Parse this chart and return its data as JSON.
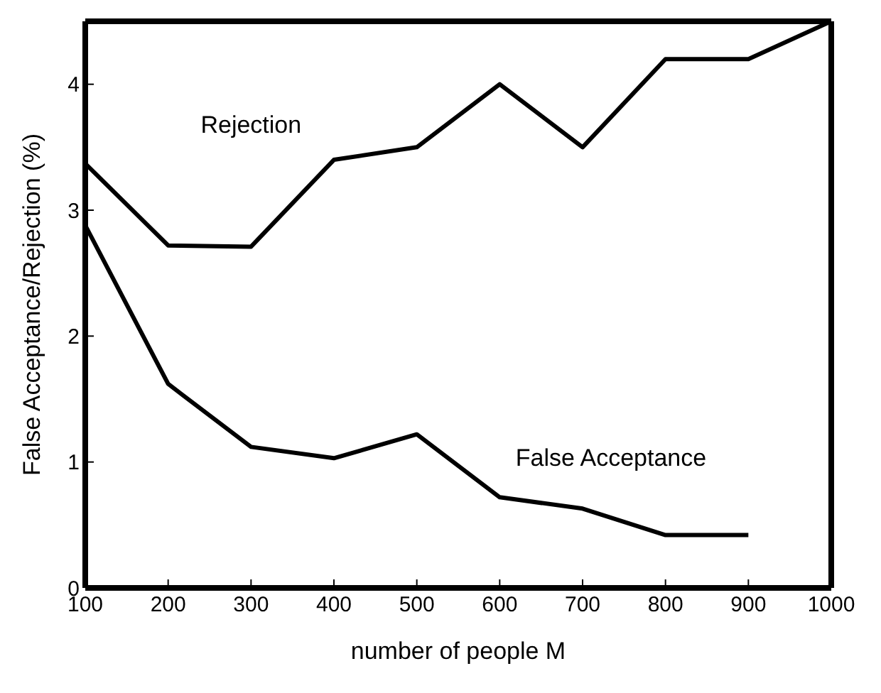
{
  "chart_data": {
    "type": "line",
    "xlabel": "number of people  M",
    "ylabel": "False Acceptance/Rejection  (%)",
    "x": [
      100,
      200,
      300,
      400,
      500,
      600,
      700,
      800,
      900,
      1000
    ],
    "series": [
      {
        "name": "Rejection",
        "color": "#000000",
        "values": [
          3.37,
          2.72,
          2.71,
          3.4,
          3.5,
          4.0,
          3.5,
          4.2,
          4.2,
          4.5
        ]
      },
      {
        "name": "False Acceptance",
        "color": "#000000",
        "values": [
          2.88,
          1.62,
          1.12,
          1.03,
          1.22,
          0.72,
          0.63,
          0.42,
          0.42,
          null
        ]
      }
    ],
    "xlim": [
      100,
      1000
    ],
    "xticks": [
      100,
      200,
      300,
      400,
      500,
      600,
      700,
      800,
      900,
      1000
    ],
    "ylim": [
      0,
      4.5
    ],
    "yticks": [
      0,
      1,
      2,
      3,
      4
    ],
    "grid": false,
    "legend": false,
    "marker": "none",
    "line_style": "solid"
  }
}
